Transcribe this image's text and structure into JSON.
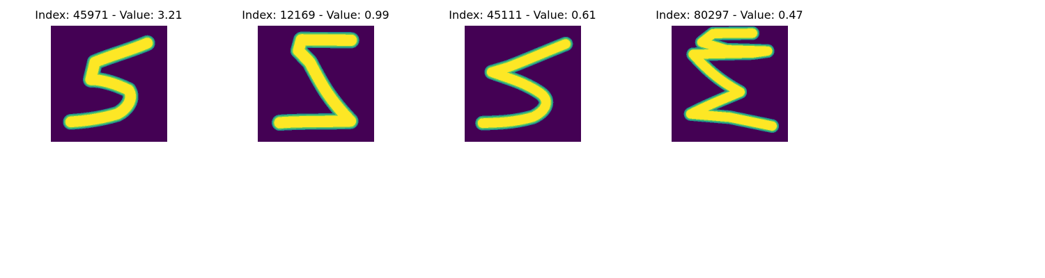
{
  "colors": {
    "background": "#440154",
    "stroke_edge": "#21918c",
    "stroke_mid": "#5ec962",
    "stroke_core": "#fde725"
  },
  "panels": [
    {
      "title": "Index: 45971 - Value: 3.21",
      "image": "handwritten-digit-five"
    },
    {
      "title": "Index: 12169 - Value: 0.99",
      "image": "handwritten-digit-five"
    },
    {
      "title": "Index: 45111 - Value: 0.61",
      "image": "handwritten-digit-five"
    },
    {
      "title": "Index: 80297 - Value: 0.47",
      "image": "handwritten-digit-five"
    }
  ]
}
